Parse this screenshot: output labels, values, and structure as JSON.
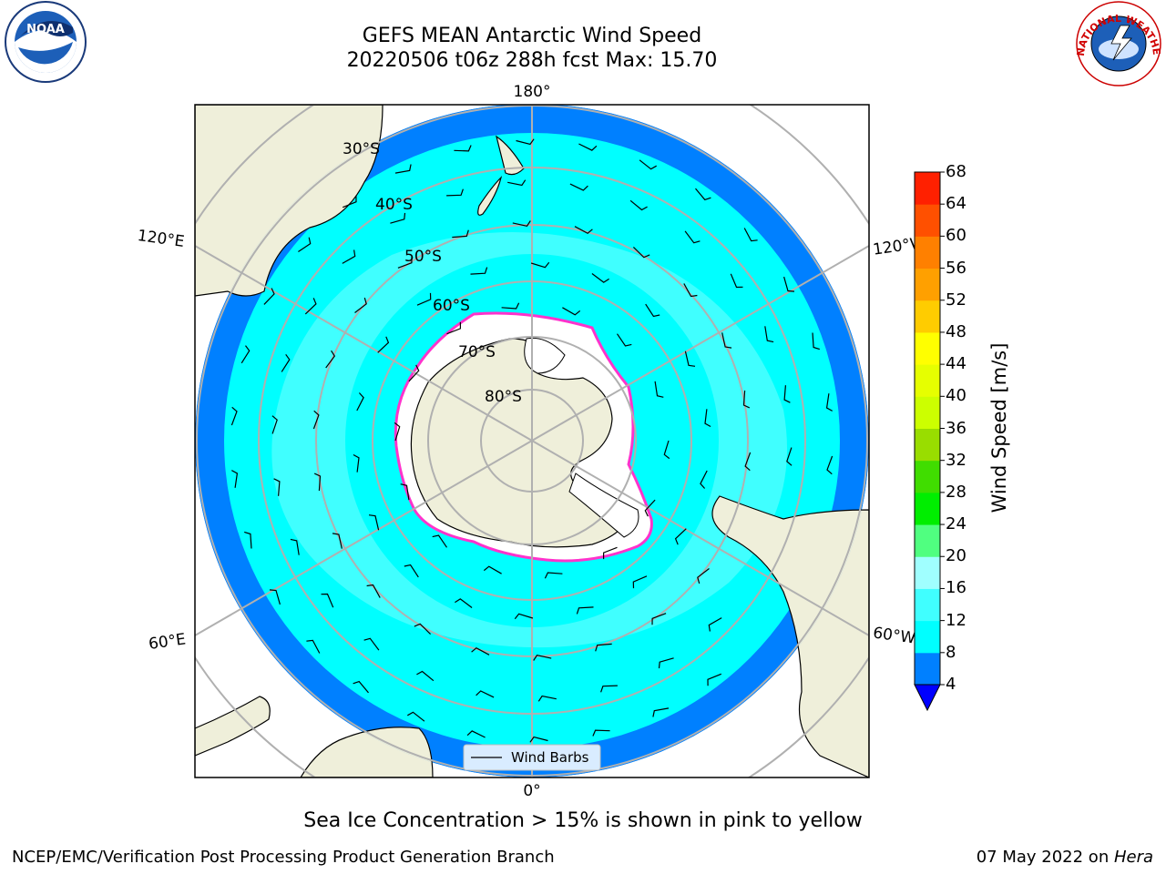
{
  "title_line1": "GEFS MEAN Antarctic Wind Speed",
  "title_line2": "20220506 t06z 288h fcst   Max: 15.70",
  "caption": "Sea Ice Concentration > 15% is shown in pink to yellow",
  "footer_left": "NCEP/EMC/Verification Post Processing Product Generation Branch",
  "footer_date": "07 May 2022 on ",
  "footer_host": "Hera",
  "legend_label": "Wind Barbs",
  "colorbar": {
    "title": "Wind Speed [m/s]",
    "ticks": [
      "4",
      "8",
      "12",
      "16",
      "20",
      "24",
      "28",
      "32",
      "36",
      "40",
      "44",
      "48",
      "52",
      "56",
      "60",
      "64",
      "68"
    ],
    "colors": [
      "#0080ff",
      "#00ffff",
      "#40ffff",
      "#a0ffff",
      "#50ff80",
      "#00ee00",
      "#40dd00",
      "#99dd00",
      "#ccff00",
      "#e6ff00",
      "#ffff00",
      "#ffcc00",
      "#ffa000",
      "#ff8000",
      "#ff5000",
      "#ff2000"
    ],
    "extend_color": "#0000ff"
  },
  "lat_labels": [
    "30°S",
    "40°S",
    "50°S",
    "60°S",
    "70°S",
    "80°S"
  ],
  "lon_labels": {
    "top": "180°",
    "bottom": "0°",
    "upper_left": "120°E",
    "upper_right": "120°W",
    "lower_left": "60°E",
    "lower_right": "60°W"
  },
  "colors": {
    "land": "#efefda",
    "ocean_high": "#00ffff",
    "ocean_low": "#0080ff",
    "ocean_mid": "#40ffff",
    "ice": "#ffffff",
    "ice_edge": "#ff33cc",
    "grid": "#b0b0b0"
  },
  "logos": {
    "left": "NOAA",
    "right_text": "NATIONAL WEATHER SERVICE"
  }
}
